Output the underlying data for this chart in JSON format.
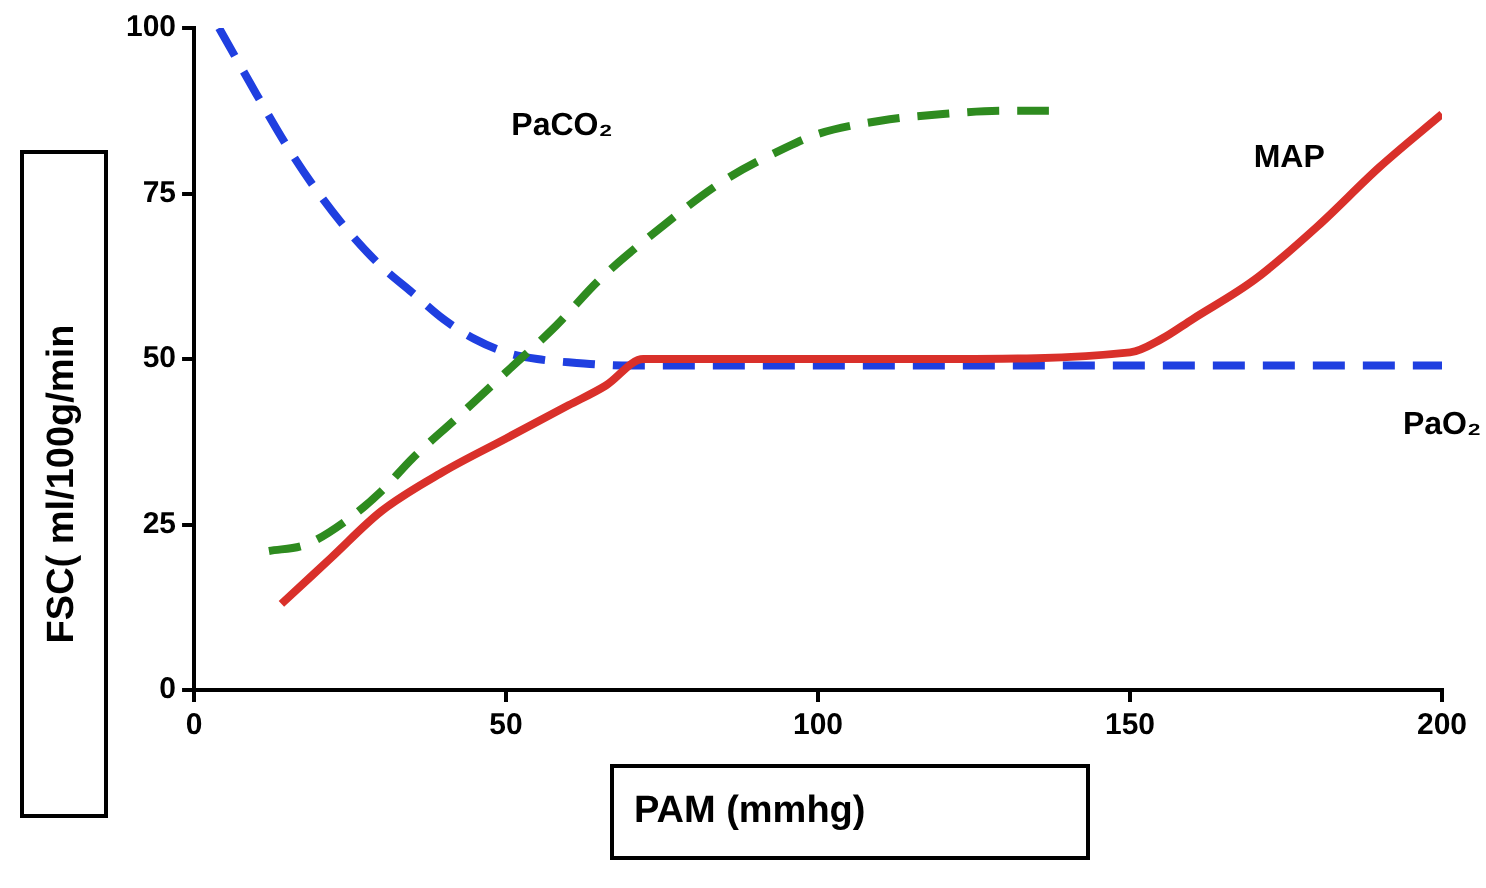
{
  "chart_data": {
    "type": "line",
    "xlabel": "PAM (mmhg)",
    "ylabel": "FSC( ml/100g/min",
    "xlim": [
      0,
      200
    ],
    "xticks": [
      0,
      50,
      100,
      150,
      200
    ],
    "ylim": [
      0,
      100
    ],
    "yticks": [
      0,
      25,
      50,
      75,
      100
    ],
    "grid": false,
    "legend": false,
    "marker": "none",
    "series": [
      {
        "name": "MAP",
        "color": "#d9302a",
        "line_style": "solid",
        "x": [
          14,
          22,
          30,
          40,
          50,
          60,
          66,
          72,
          85,
          100,
          120,
          150,
          155,
          160,
          170,
          180,
          190,
          200
        ],
        "values": [
          13,
          20,
          27,
          33,
          38,
          43,
          46,
          50,
          50,
          50,
          50,
          51,
          53,
          56,
          62,
          70,
          79,
          87
        ]
      },
      {
        "name": "PaCO₂",
        "color": "#2e8b1f",
        "line_style": "dashed",
        "x": [
          12,
          18,
          25,
          30,
          35,
          42,
          50,
          58,
          65,
          75,
          85,
          95,
          100,
          110,
          120,
          130,
          137
        ],
        "values": [
          21,
          22,
          26,
          30,
          35,
          41,
          48,
          55,
          62,
          70,
          77,
          82,
          84,
          86,
          87,
          87.5,
          87.5
        ]
      },
      {
        "name": "PaO₂",
        "color": "#1f3fe0",
        "line_style": "dashed",
        "x": [
          4,
          7,
          10,
          15,
          20,
          25,
          30,
          35,
          40,
          45,
          50,
          55,
          60,
          70,
          80,
          100,
          150,
          200
        ],
        "values": [
          100,
          95,
          90,
          82,
          75,
          69,
          64,
          60,
          56,
          53,
          51,
          50,
          49.5,
          49,
          49,
          49,
          49,
          49
        ]
      }
    ]
  }
}
